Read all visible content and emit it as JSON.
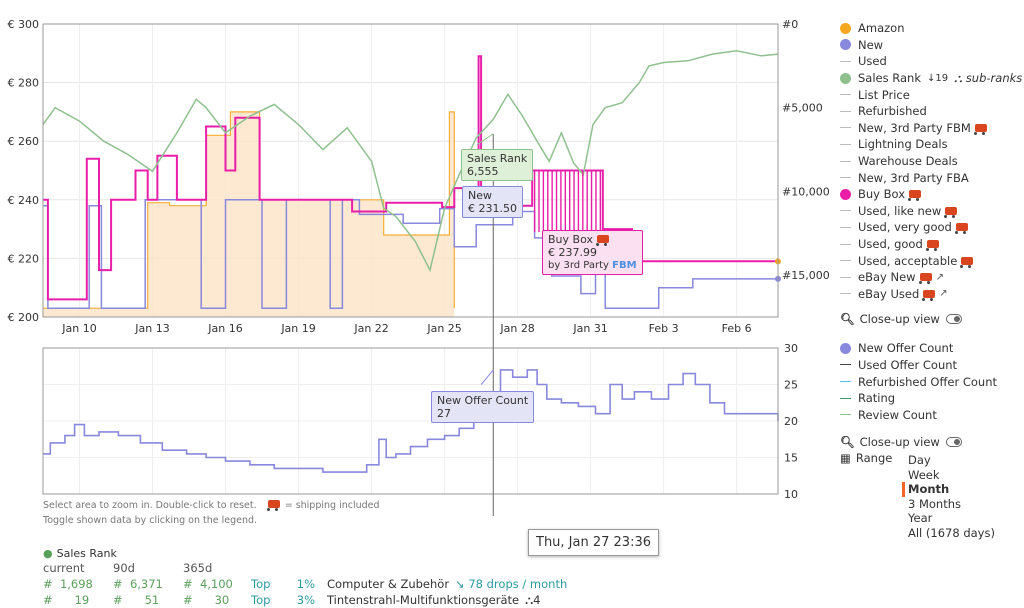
{
  "chart_data": [
    {
      "type": "line",
      "title": "",
      "x_ticks": [
        "Jan 10",
        "Jan 13",
        "Jan 16",
        "Jan 19",
        "Jan 22",
        "Jan 25",
        "Jan 28",
        "Jan 31",
        "Feb 3",
        "Feb 6"
      ],
      "x_tick_days": [
        10,
        13,
        16,
        19,
        22,
        25,
        28,
        31,
        34,
        37
      ],
      "x_range_days": [
        8.5,
        38.7
      ],
      "y_left_ticks": [
        "€ 200",
        "€ 220",
        "€ 240",
        "€ 260",
        "€ 280",
        "€ 300"
      ],
      "y_left_range": [
        200,
        300
      ],
      "y_right_ticks": [
        "#0",
        "#5,000",
        "#10,000",
        "#15,000"
      ],
      "y_right_range": [
        0,
        17500
      ],
      "series": [
        {
          "name": "Amazon",
          "color": "#f5a623",
          "points": [
            [
              8.5,
              203
            ],
            [
              12.8,
              203
            ],
            [
              12.8,
              239
            ],
            [
              13.7,
              239
            ],
            [
              13.7,
              238
            ],
            [
              15.2,
              238
            ],
            [
              15.2,
              262
            ],
            [
              16.2,
              262
            ],
            [
              16.2,
              270
            ],
            [
              17.4,
              270
            ],
            [
              17.4,
              240
            ],
            [
              22.5,
              240
            ],
            [
              22.5,
              228
            ],
            [
              25.2,
              228
            ],
            [
              25.2,
              270
            ],
            [
              25.4,
              270
            ],
            [
              25.4,
              203
            ]
          ]
        },
        {
          "name": "New",
          "color": "#8888dd",
          "points": [
            [
              8.5,
              238
            ],
            [
              8.7,
              238
            ],
            [
              8.7,
              203
            ],
            [
              10.4,
              203
            ],
            [
              10.4,
              238
            ],
            [
              10.9,
              238
            ],
            [
              10.9,
              203
            ],
            [
              12.7,
              203
            ],
            [
              12.7,
              240
            ],
            [
              15.0,
              240
            ],
            [
              15.0,
              203
            ],
            [
              16.0,
              203
            ],
            [
              16.0,
              240
            ],
            [
              17.5,
              240
            ],
            [
              17.5,
              203
            ],
            [
              18.5,
              203
            ],
            [
              18.5,
              240
            ],
            [
              20.3,
              240
            ],
            [
              20.3,
              203
            ],
            [
              20.8,
              203
            ],
            [
              20.8,
              240
            ],
            [
              21.5,
              240
            ],
            [
              21.5,
              235
            ],
            [
              23.3,
              235
            ],
            [
              23.3,
              232
            ],
            [
              24.8,
              232
            ],
            [
              24.8,
              237
            ],
            [
              25.4,
              237
            ],
            [
              25.4,
              224
            ],
            [
              26.3,
              224
            ],
            [
              26.3,
              231.5
            ],
            [
              27.8,
              231.5
            ],
            [
              27.8,
              236
            ],
            [
              28.7,
              236
            ],
            [
              28.7,
              227
            ],
            [
              29.4,
              227
            ],
            [
              29.4,
              214
            ],
            [
              30.6,
              214
            ],
            [
              30.6,
              208
            ],
            [
              31.2,
              208
            ],
            [
              31.2,
              223
            ],
            [
              31.6,
              223
            ],
            [
              31.6,
              203
            ],
            [
              33.8,
              203
            ],
            [
              33.8,
              210
            ],
            [
              35.2,
              210
            ],
            [
              35.2,
              213
            ],
            [
              38.7,
              213
            ]
          ]
        },
        {
          "name": "Buy Box",
          "color": "#e91ea8",
          "points": [
            [
              8.5,
              240
            ],
            [
              8.7,
              240
            ],
            [
              8.7,
              206
            ],
            [
              10.3,
              206
            ],
            [
              10.3,
              254
            ],
            [
              10.8,
              254
            ],
            [
              10.8,
              216
            ],
            [
              11.3,
              216
            ],
            [
              11.3,
              240
            ],
            [
              12.3,
              240
            ],
            [
              12.3,
              250
            ],
            [
              12.8,
              250
            ],
            [
              12.8,
              240
            ],
            [
              13.2,
              240
            ],
            [
              13.2,
              255
            ],
            [
              14.0,
              255
            ],
            [
              14.0,
              240
            ],
            [
              15.2,
              240
            ],
            [
              15.2,
              265
            ],
            [
              16.0,
              265
            ],
            [
              16.0,
              250
            ],
            [
              16.4,
              250
            ],
            [
              16.4,
              268
            ],
            [
              17.4,
              268
            ],
            [
              17.4,
              240
            ],
            [
              21.2,
              240
            ],
            [
              21.2,
              236
            ],
            [
              22.6,
              236
            ],
            [
              22.6,
              239
            ],
            [
              24.9,
              239
            ],
            [
              24.9,
              237.5
            ],
            [
              25.4,
              237.5
            ],
            [
              25.4,
              244
            ],
            [
              26.4,
              244
            ],
            [
              26.4,
              289
            ],
            [
              26.5,
              289
            ],
            [
              26.5,
              244
            ],
            [
              27.7,
              244
            ],
            [
              27.7,
              238
            ],
            [
              28.6,
              238
            ],
            [
              28.6,
              250
            ],
            [
              31.5,
              250
            ],
            [
              31.5,
              230
            ],
            [
              32.7,
              230
            ],
            [
              32.7,
              219
            ],
            [
              38.7,
              219
            ]
          ]
        },
        {
          "name": "Sales Rank",
          "color": "#8fc18f",
          "axis": "right",
          "points": [
            [
              8.5,
              6000
            ],
            [
              9.0,
              5000
            ],
            [
              10.0,
              5800
            ],
            [
              11.0,
              7000
            ],
            [
              12.0,
              7800
            ],
            [
              13.0,
              8800
            ],
            [
              14.0,
              6500
            ],
            [
              14.8,
              4500
            ],
            [
              15.2,
              5000
            ],
            [
              16.0,
              6500
            ],
            [
              17.0,
              5500
            ],
            [
              18.0,
              4800
            ],
            [
              19.0,
              6000
            ],
            [
              20.0,
              7500
            ],
            [
              21.0,
              6200
            ],
            [
              22.0,
              8200
            ],
            [
              22.5,
              11000
            ],
            [
              23.0,
              11500
            ],
            [
              23.8,
              13000
            ],
            [
              24.4,
              14700
            ],
            [
              25.0,
              11000
            ],
            [
              25.6,
              9000
            ],
            [
              26.3,
              6800
            ],
            [
              27.0,
              5700
            ],
            [
              27.6,
              4200
            ],
            [
              28.2,
              5500
            ],
            [
              28.8,
              7000
            ],
            [
              29.3,
              8200
            ],
            [
              29.8,
              6500
            ],
            [
              30.3,
              8300
            ],
            [
              30.7,
              9000
            ],
            [
              31.1,
              6000
            ],
            [
              31.6,
              5000
            ],
            [
              32.3,
              4700
            ],
            [
              33.0,
              3500
            ],
            [
              33.4,
              2500
            ],
            [
              34.0,
              2300
            ],
            [
              35.0,
              2200
            ],
            [
              36.0,
              1800
            ],
            [
              37.0,
              1600
            ],
            [
              38.0,
              1900
            ],
            [
              38.7,
              1800
            ]
          ]
        }
      ],
      "tooltips": [
        {
          "label": "Sales Rank",
          "value": "6,555"
        },
        {
          "label": "New",
          "value": "€ 231.50"
        },
        {
          "label": "Buy Box",
          "value": "€ 237.99",
          "seller_prefix": "by",
          "seller": "3rd Party",
          "fulfillment": "FBM"
        }
      ]
    },
    {
      "type": "line",
      "title": "",
      "y_right_ticks": [
        "10",
        "15",
        "20",
        "25",
        "30"
      ],
      "y_range": [
        10,
        30
      ],
      "series": [
        {
          "name": "New Offer Count",
          "color": "#8888dd",
          "points": [
            [
              8.5,
              15.5
            ],
            [
              8.8,
              17
            ],
            [
              9.4,
              18
            ],
            [
              9.8,
              19.5
            ],
            [
              10.2,
              18
            ],
            [
              10.8,
              18.5
            ],
            [
              11.6,
              18
            ],
            [
              12.5,
              17
            ],
            [
              13.4,
              16
            ],
            [
              14.4,
              15.5
            ],
            [
              15.2,
              15
            ],
            [
              16.0,
              14.5
            ],
            [
              17.0,
              14
            ],
            [
              18.0,
              13.5
            ],
            [
              19.0,
              13.5
            ],
            [
              20.0,
              13
            ],
            [
              21.0,
              13
            ],
            [
              21.8,
              14
            ],
            [
              22.3,
              17.5
            ],
            [
              22.6,
              15
            ],
            [
              23.0,
              15.5
            ],
            [
              23.6,
              16.5
            ],
            [
              24.3,
              17.5
            ],
            [
              25.0,
              18
            ],
            [
              25.6,
              19
            ],
            [
              26.2,
              21
            ],
            [
              26.8,
              24
            ],
            [
              27.3,
              27
            ],
            [
              27.8,
              26
            ],
            [
              28.4,
              27
            ],
            [
              28.8,
              25
            ],
            [
              29.2,
              23
            ],
            [
              29.8,
              22.5
            ],
            [
              30.5,
              22
            ],
            [
              31.2,
              21
            ],
            [
              31.8,
              25
            ],
            [
              32.3,
              23
            ],
            [
              32.8,
              24
            ],
            [
              33.5,
              23
            ],
            [
              34.2,
              25
            ],
            [
              34.8,
              26.5
            ],
            [
              35.3,
              25
            ],
            [
              35.9,
              22.5
            ],
            [
              36.5,
              21
            ],
            [
              38.0,
              21
            ],
            [
              38.7,
              20
            ]
          ]
        }
      ],
      "tooltip": {
        "label": "New Offer Count",
        "value": "27"
      }
    }
  ],
  "crosshair_label": "Thu, Jan 27 23:36",
  "legend_primary": [
    {
      "label": "Amazon",
      "marker": "dot",
      "color": "#f5a623"
    },
    {
      "label": "New",
      "marker": "dot",
      "color": "#8888dd"
    },
    {
      "label": "Used",
      "marker": "dash"
    },
    {
      "label": "Sales Rank",
      "marker": "dot",
      "color": "#8fc18f",
      "extra": "↓19",
      "extra2": "sub-ranks"
    },
    {
      "label": "List Price",
      "marker": "dash"
    },
    {
      "label": "Refurbished",
      "marker": "dash"
    },
    {
      "label": "New, 3rd Party FBM",
      "marker": "dash",
      "truck": true
    },
    {
      "label": "Lightning Deals",
      "marker": "dash"
    },
    {
      "label": "Warehouse Deals",
      "marker": "dash"
    },
    {
      "label": "New, 3rd Party FBA",
      "marker": "dash"
    },
    {
      "label": "Buy Box",
      "marker": "dot",
      "color": "#e91ea8",
      "truck": true
    },
    {
      "label": "Used, like new",
      "marker": "dash",
      "truck": true
    },
    {
      "label": "Used, very good",
      "marker": "dash",
      "truck": true
    },
    {
      "label": "Used, good",
      "marker": "dash",
      "truck": true
    },
    {
      "label": "Used, acceptable",
      "marker": "dash",
      "truck": true
    },
    {
      "label": "eBay New",
      "marker": "dash",
      "truck": true,
      "link": true
    },
    {
      "label": "eBay Used",
      "marker": "dash",
      "truck": true,
      "link": true
    }
  ],
  "closeup_label": "Close-up view",
  "legend_secondary": [
    {
      "label": "New Offer Count",
      "marker": "dot",
      "color": "#8888dd"
    },
    {
      "label": "Used Offer Count",
      "marker": "dash",
      "color": "#444444"
    },
    {
      "label": "Refurbished Offer Count",
      "marker": "dash",
      "color": "#5bc0de"
    },
    {
      "label": "Rating",
      "marker": "dash",
      "color": "#3a9a6a"
    },
    {
      "label": "Review Count",
      "marker": "dash",
      "color": "#8fc18f"
    }
  ],
  "range_label": "Range",
  "range_options": [
    "Day",
    "Week",
    "Month",
    "3 Months",
    "Year",
    "All (1678 days)"
  ],
  "range_active": "Month",
  "info_line1": "Select area to zoom in. Double-click to reset.",
  "info_shipping": "= shipping included",
  "info_line2": "Toggle shown data by clicking on the legend.",
  "stats": {
    "title": "Sales Rank",
    "headers": [
      "current",
      "90d",
      "365d"
    ],
    "rows": [
      {
        "current": "1,698",
        "d90": "6,371",
        "d365": "4,100",
        "top": "Top",
        "pct": "1%",
        "category": "Computer & Zubehör",
        "extra": "78 drops / month"
      },
      {
        "current": "19",
        "d90": "51",
        "d365": "30",
        "top": "Top",
        "pct": "3%",
        "category": "Tintenstrahl-Multifunktionsgeräte",
        "extra": "4"
      }
    ],
    "hash": "#"
  }
}
